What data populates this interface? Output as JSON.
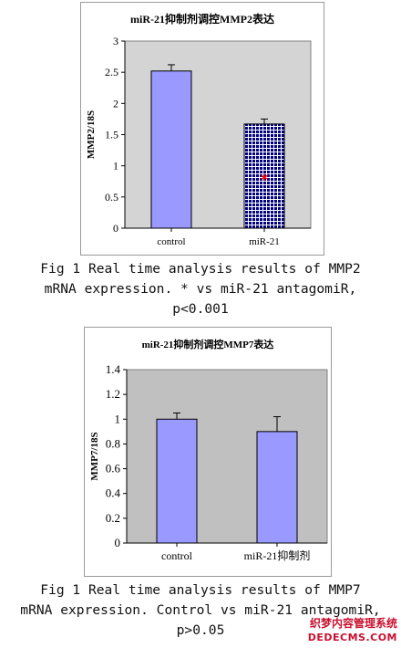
{
  "colors": {
    "bar_fill": "#9999ff",
    "plot_bg_gray": "#c0c0c0",
    "grid_pattern": "#000080",
    "significance_star": "#ff0000",
    "watermark": "#c8102e"
  },
  "chart_data": [
    {
      "type": "bar",
      "title": "miR-21抑制剂调控MMP2表达",
      "ylabel": "MMP2/18S",
      "xlabel": "",
      "categories": [
        "control",
        "miR-21"
      ],
      "values": [
        2.52,
        1.67
      ],
      "errors": [
        0.1,
        0.08
      ],
      "ylim": [
        0,
        3
      ],
      "yticks": [
        "0",
        "0.5",
        "1",
        "1.5",
        "2",
        "2.5",
        "3"
      ],
      "plot_background": "light gray",
      "grid": false,
      "legend": "none",
      "bar_styles": [
        "solid",
        "navy grid pattern"
      ],
      "annotation": {
        "text": "*",
        "category": "miR-21",
        "y": 0.82
      }
    },
    {
      "type": "bar",
      "title": "miR-21抑制剂调控MMP7表达",
      "ylabel": "MMP7/18S",
      "xlabel": "",
      "categories": [
        "control",
        "miR-21抑制剂"
      ],
      "values": [
        1.0,
        0.9
      ],
      "errors": [
        0.05,
        0.12
      ],
      "ylim": [
        0,
        1.4
      ],
      "yticks": [
        "0",
        "0.2",
        "0.4",
        "0.6",
        "0.8",
        "1",
        "1.2",
        "1.4"
      ],
      "plot_background": "gray",
      "grid": false,
      "legend": "none",
      "bar_styles": [
        "solid",
        "solid"
      ]
    }
  ],
  "captions": [
    {
      "line1": "Fig 1 Real time analysis results of MMP2",
      "line2": "mRNA expression. * vs miR-21 antagomiR,",
      "line3": "p<0.001"
    },
    {
      "line1": "Fig 1 Real time analysis results of MMP7",
      "line2": "mRNA expression. Control vs miR-21 antagomiR,",
      "line3": "p>0.05"
    }
  ],
  "watermark": {
    "line1": "织梦内容管理系统",
    "line2": "DEDECMS.COM"
  }
}
